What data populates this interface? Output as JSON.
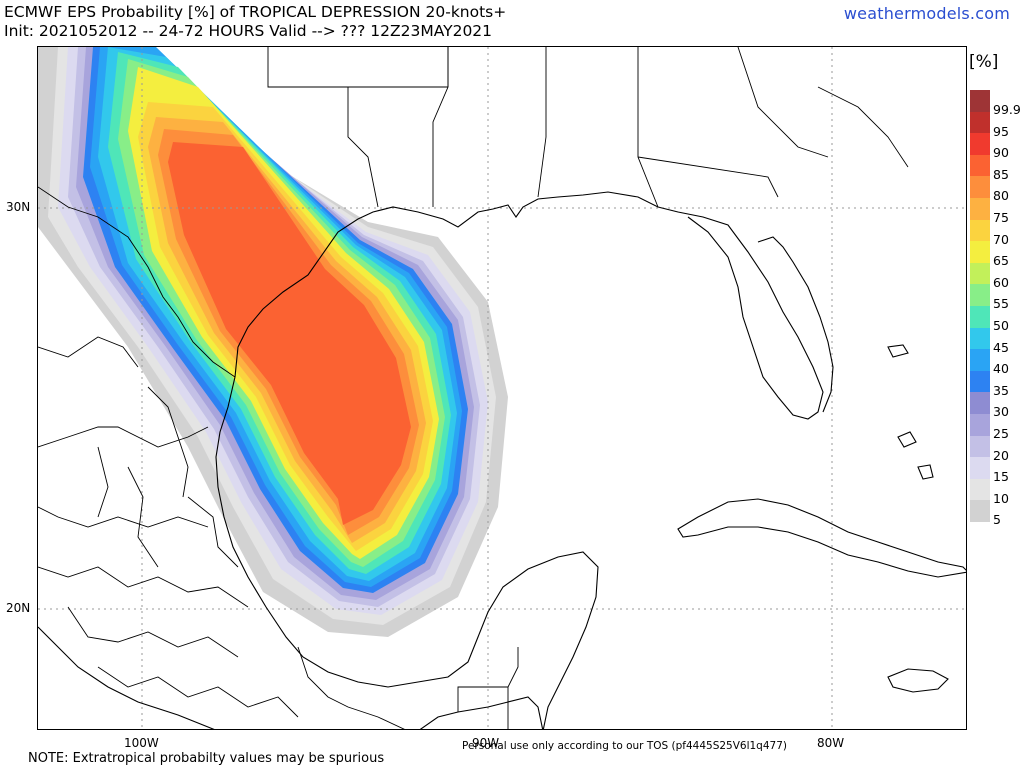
{
  "header": {
    "title_line1": "ECMWF EPS Probability [%] of TROPICAL DEPRESSION 20-knots+",
    "title_line2": "Init: 2021052012 -- 24-72 HOURS Valid --> ??? 12Z23MAY2021",
    "site": "weathermodels.com"
  },
  "axes": {
    "lat_labels": [
      "30N",
      "20N"
    ],
    "lon_labels": [
      "100W",
      "90W",
      "80W"
    ]
  },
  "footer": {
    "note": "NOTE: Extratropical probabilty values may be spurious",
    "tos": "Personal use only according to our TOS (pf4445S25V6l1q477)"
  },
  "legend": {
    "unit": "[%]",
    "levels": [
      "99.9",
      "95",
      "90",
      "85",
      "80",
      "75",
      "70",
      "65",
      "60",
      "55",
      "50",
      "45",
      "40",
      "35",
      "30",
      "25",
      "20",
      "15",
      "10",
      "5"
    ],
    "colors": [
      "#9e3436",
      "#c0302c",
      "#f03a2e",
      "#fb6232",
      "#fd8e3c",
      "#fdb141",
      "#fbd33f",
      "#f4ee3f",
      "#c2f05a",
      "#88ee88",
      "#4fe6b8",
      "#32c8ec",
      "#2aa4f4",
      "#2d82f2",
      "#8e8cd2",
      "#a8a4dc",
      "#c3c0e6",
      "#dcdaf0",
      "#e4e4e4",
      "#d2d2d2"
    ]
  }
}
